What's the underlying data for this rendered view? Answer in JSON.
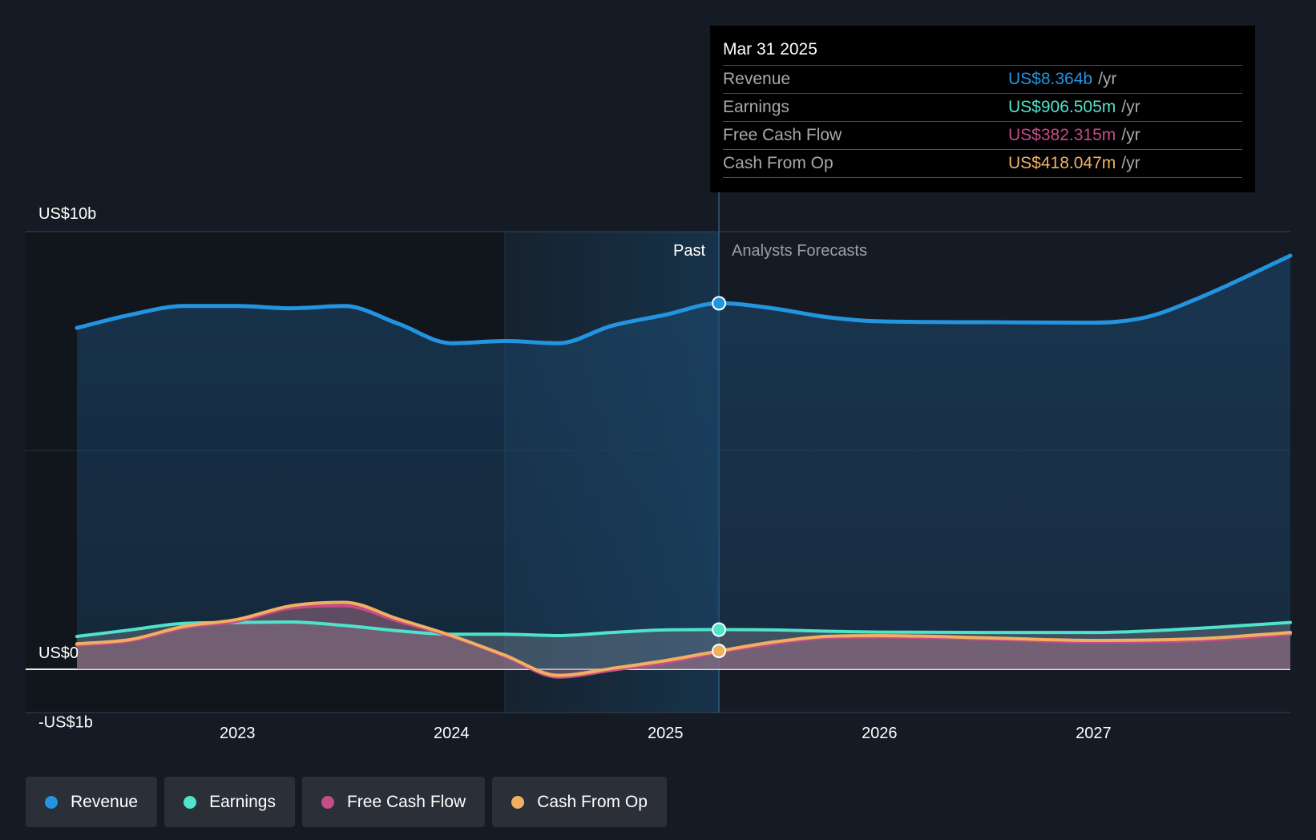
{
  "tooltip": {
    "date": "Mar 31 2025",
    "rows": [
      {
        "name": "Revenue",
        "value": "US$8.364b",
        "unit": "/yr",
        "color": "#2394df"
      },
      {
        "name": "Earnings",
        "value": "US$906.505m",
        "unit": "/yr",
        "color": "#4fe3cb"
      },
      {
        "name": "Free Cash Flow",
        "value": "US$382.315m",
        "unit": "/yr",
        "color": "#c74b87"
      },
      {
        "name": "Cash From Op",
        "value": "US$418.047m",
        "unit": "/yr",
        "color": "#f0b062"
      }
    ]
  },
  "regions": {
    "past": "Past",
    "forecast": "Analysts Forecasts"
  },
  "legend": [
    {
      "label": "Revenue",
      "color": "#2394df"
    },
    {
      "label": "Earnings",
      "color": "#4fe3cb"
    },
    {
      "label": "Free Cash Flow",
      "color": "#c74b87"
    },
    {
      "label": "Cash From Op",
      "color": "#f0b062"
    }
  ],
  "chart_data": {
    "type": "line",
    "xlim": [
      2022.25,
      2027.92
    ],
    "ylim": [
      -1,
      10
    ],
    "y_ticks": [
      {
        "value": 10,
        "label": "US$10b"
      },
      {
        "value": 0,
        "label": "US$0"
      },
      {
        "value": -1,
        "label": "-US$1b"
      }
    ],
    "x_ticks": [
      {
        "value": 2023,
        "label": "2023"
      },
      {
        "value": 2024,
        "label": "2024"
      },
      {
        "value": 2025,
        "label": "2025"
      },
      {
        "value": 2026,
        "label": "2026"
      },
      {
        "value": 2027,
        "label": "2027"
      }
    ],
    "past_start": 2024.25,
    "present": 2025.25,
    "grid": true,
    "series": [
      {
        "name": "Revenue",
        "color": "#2394df",
        "points": [
          [
            2022.25,
            7.8
          ],
          [
            2022.5,
            8.1
          ],
          [
            2022.75,
            8.3
          ],
          [
            2023.0,
            8.3
          ],
          [
            2023.25,
            8.25
          ],
          [
            2023.5,
            8.3
          ],
          [
            2023.75,
            7.9
          ],
          [
            2024.0,
            7.45
          ],
          [
            2024.25,
            7.5
          ],
          [
            2024.5,
            7.45
          ],
          [
            2024.75,
            7.85
          ],
          [
            2025.0,
            8.1
          ],
          [
            2025.25,
            8.364
          ],
          [
            2025.5,
            8.25
          ],
          [
            2025.75,
            8.05
          ],
          [
            2026.0,
            7.95
          ],
          [
            2026.5,
            7.93
          ],
          [
            2027.0,
            7.92
          ],
          [
            2027.25,
            8.05
          ],
          [
            2027.5,
            8.5
          ],
          [
            2027.92,
            9.45
          ]
        ]
      },
      {
        "name": "Earnings",
        "color": "#4fe3cb",
        "points": [
          [
            2022.25,
            0.75
          ],
          [
            2022.5,
            0.9
          ],
          [
            2022.75,
            1.05
          ],
          [
            2023.0,
            1.07
          ],
          [
            2023.25,
            1.08
          ],
          [
            2023.5,
            1.0
          ],
          [
            2023.75,
            0.88
          ],
          [
            2024.0,
            0.8
          ],
          [
            2024.25,
            0.8
          ],
          [
            2024.5,
            0.77
          ],
          [
            2024.75,
            0.84
          ],
          [
            2025.0,
            0.9
          ],
          [
            2025.25,
            0.906505
          ],
          [
            2025.5,
            0.9
          ],
          [
            2025.75,
            0.87
          ],
          [
            2026.0,
            0.85
          ],
          [
            2026.5,
            0.84
          ],
          [
            2027.0,
            0.84
          ],
          [
            2027.5,
            0.94
          ],
          [
            2027.92,
            1.07
          ]
        ]
      },
      {
        "name": "Free Cash Flow",
        "color": "#c74b87",
        "points": [
          [
            2022.25,
            0.55
          ],
          [
            2022.5,
            0.65
          ],
          [
            2022.75,
            0.95
          ],
          [
            2023.0,
            1.1
          ],
          [
            2023.25,
            1.4
          ],
          [
            2023.5,
            1.45
          ],
          [
            2023.75,
            1.1
          ],
          [
            2024.0,
            0.75
          ],
          [
            2024.25,
            0.3
          ],
          [
            2024.5,
            -0.18
          ],
          [
            2024.75,
            -0.02
          ],
          [
            2025.0,
            0.15
          ],
          [
            2025.25,
            0.382315
          ],
          [
            2025.5,
            0.58
          ],
          [
            2025.75,
            0.72
          ],
          [
            2026.0,
            0.74
          ],
          [
            2026.5,
            0.69
          ],
          [
            2027.0,
            0.62
          ],
          [
            2027.5,
            0.66
          ],
          [
            2027.92,
            0.8
          ]
        ]
      },
      {
        "name": "Cash From Op",
        "color": "#f0b062",
        "points": [
          [
            2022.25,
            0.58
          ],
          [
            2022.5,
            0.68
          ],
          [
            2022.75,
            0.98
          ],
          [
            2023.0,
            1.14
          ],
          [
            2023.25,
            1.45
          ],
          [
            2023.5,
            1.53
          ],
          [
            2023.75,
            1.15
          ],
          [
            2024.0,
            0.77
          ],
          [
            2024.25,
            0.32
          ],
          [
            2024.5,
            -0.14
          ],
          [
            2024.75,
            0.02
          ],
          [
            2025.0,
            0.2
          ],
          [
            2025.25,
            0.418047
          ],
          [
            2025.5,
            0.62
          ],
          [
            2025.75,
            0.75
          ],
          [
            2026.0,
            0.77
          ],
          [
            2026.5,
            0.72
          ],
          [
            2027.0,
            0.66
          ],
          [
            2027.5,
            0.7
          ],
          [
            2027.92,
            0.84
          ]
        ]
      }
    ]
  }
}
